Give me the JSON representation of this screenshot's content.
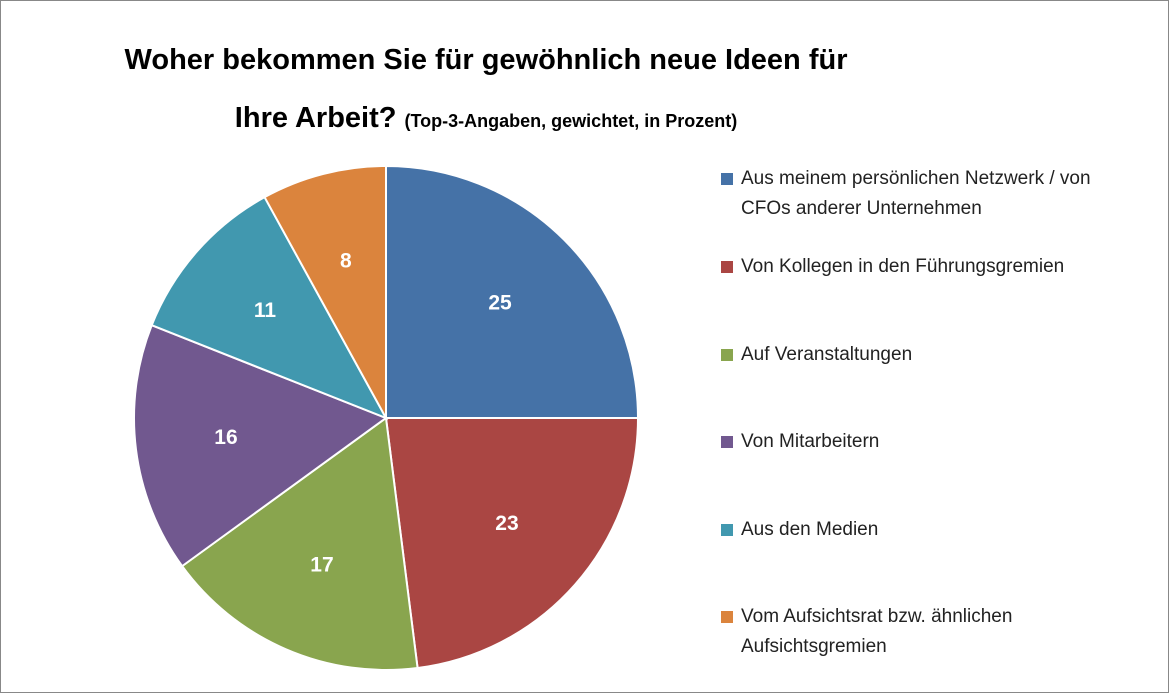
{
  "chart_data": {
    "type": "pie",
    "title": "Woher bekommen Sie für gewöhnlich neue Ideen für Ihre Arbeit?",
    "subtitle": "(Top-3-Angaben, gewichtet, in Prozent)",
    "categories": [
      "Aus meinem persönlichen Netzwerk / von CFOs anderer Unternehmen",
      "Von Kollegen in den Führungsgremien",
      "Auf Veranstaltungen",
      "Von Mitarbeitern",
      "Aus den Medien",
      "Vom Aufsichtsrat bzw. ähnlichen Aufsichtsgremien"
    ],
    "values": [
      25,
      23,
      17,
      16,
      11,
      8
    ],
    "colors": [
      "#4572a7",
      "#aa4643",
      "#89a54e",
      "#71588f",
      "#4198af",
      "#db843d"
    ],
    "legend": "right"
  }
}
